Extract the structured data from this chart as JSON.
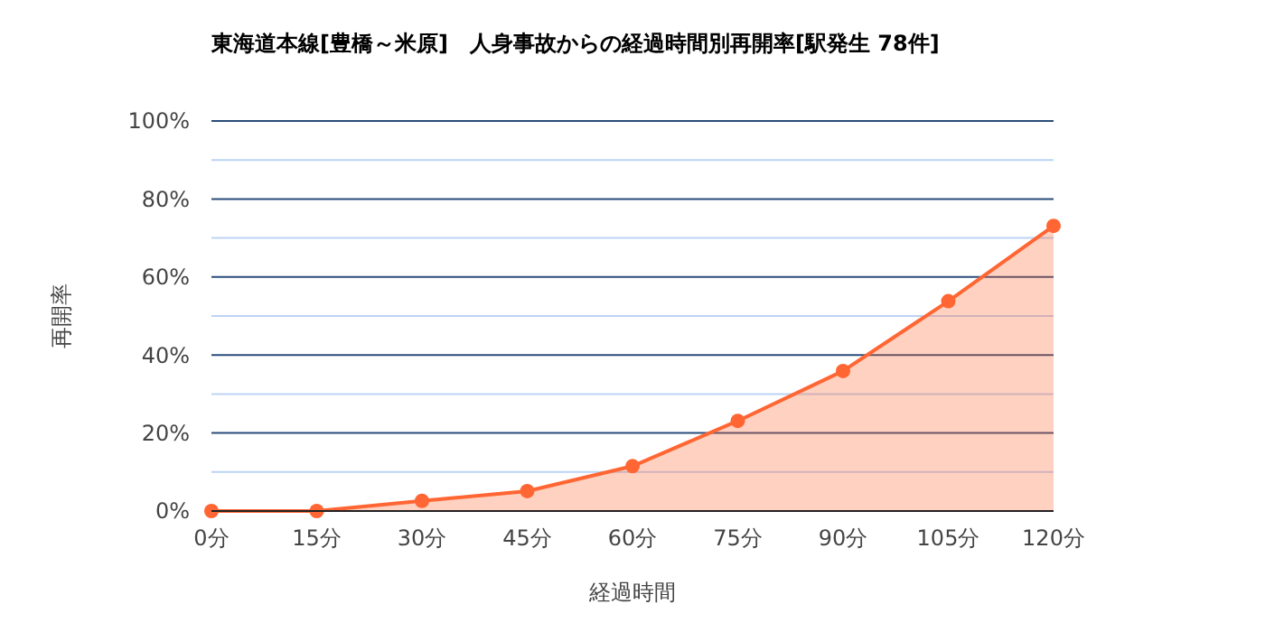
{
  "chart_data": {
    "type": "area",
    "title": "東海道本線[豊橋～米原]　人身事故からの経過時間別再開率[駅発生 78件]",
    "xlabel": "経過時間",
    "ylabel": "再開率",
    "categories": [
      "0分",
      "15分",
      "30分",
      "45分",
      "60分",
      "75分",
      "90分",
      "105分",
      "120分"
    ],
    "series": [
      {
        "color": "#ff6633",
        "values": [
          0,
          0,
          2.6,
          5.1,
          11.5,
          23.1,
          35.9,
          53.8,
          73.1
        ]
      }
    ],
    "ylim": [
      0,
      100
    ],
    "yticks": [
      {
        "value": 0,
        "label": "0%"
      },
      {
        "value": 10,
        "label": null
      },
      {
        "value": 20,
        "label": "20%"
      },
      {
        "value": 30,
        "label": null
      },
      {
        "value": 40,
        "label": "40%"
      },
      {
        "value": 50,
        "label": null
      },
      {
        "value": 60,
        "label": "60%"
      },
      {
        "value": 70,
        "label": null
      },
      {
        "value": 80,
        "label": "80%"
      },
      {
        "value": 90,
        "label": null
      },
      {
        "value": 100,
        "label": "100%"
      }
    ],
    "grid": true,
    "marker": "circle"
  }
}
